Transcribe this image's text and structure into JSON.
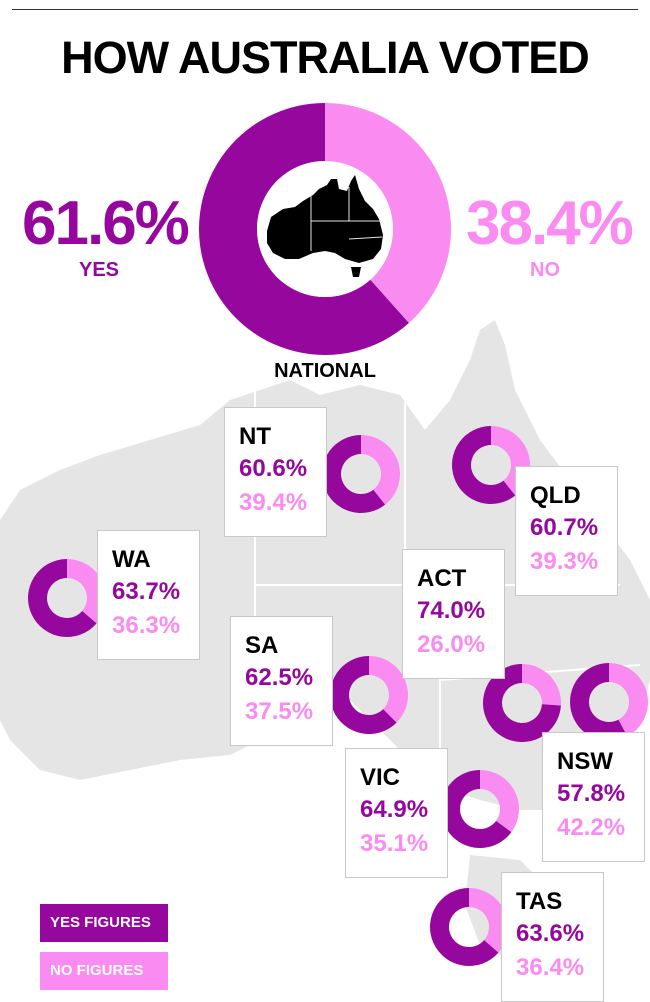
{
  "colors": {
    "yes": "#96079e",
    "no": "#f98bf1",
    "map": "#e5e5e5",
    "map_line": "#ffffff"
  },
  "chart_data": {
    "type": "pie",
    "title": "HOW AUSTRALIA VOTED",
    "national": {
      "label": "NATIONAL",
      "yes": 61.6,
      "no": 38.4,
      "yes_label": "YES",
      "no_label": "NO",
      "yes_text": "61.6%",
      "no_text": "38.4%"
    },
    "states": [
      {
        "name": "NT",
        "yes": 60.6,
        "no": 39.4,
        "yes_text": "60.6%",
        "no_text": "39.4%"
      },
      {
        "name": "QLD",
        "yes": 60.7,
        "no": 39.3,
        "yes_text": "60.7%",
        "no_text": "39.3%"
      },
      {
        "name": "WA",
        "yes": 63.7,
        "no": 36.3,
        "yes_text": "63.7%",
        "no_text": "36.3%"
      },
      {
        "name": "ACT",
        "yes": 74.0,
        "no": 26.0,
        "yes_text": "74.0%",
        "no_text": "26.0%"
      },
      {
        "name": "SA",
        "yes": 62.5,
        "no": 37.5,
        "yes_text": "62.5%",
        "no_text": "37.5%"
      },
      {
        "name": "NSW",
        "yes": 57.8,
        "no": 42.2,
        "yes_text": "57.8%",
        "no_text": "42.2%"
      },
      {
        "name": "VIC",
        "yes": 64.9,
        "no": 35.1,
        "yes_text": "64.9%",
        "no_text": "35.1%"
      },
      {
        "name": "TAS",
        "yes": 63.6,
        "no": 36.4,
        "yes_text": "63.6%",
        "no_text": "36.4%"
      }
    ],
    "legend": [
      {
        "label": "YES FIGURES",
        "color": "#96079e"
      },
      {
        "label": "NO FIGURES",
        "color": "#f98bf1"
      }
    ]
  }
}
